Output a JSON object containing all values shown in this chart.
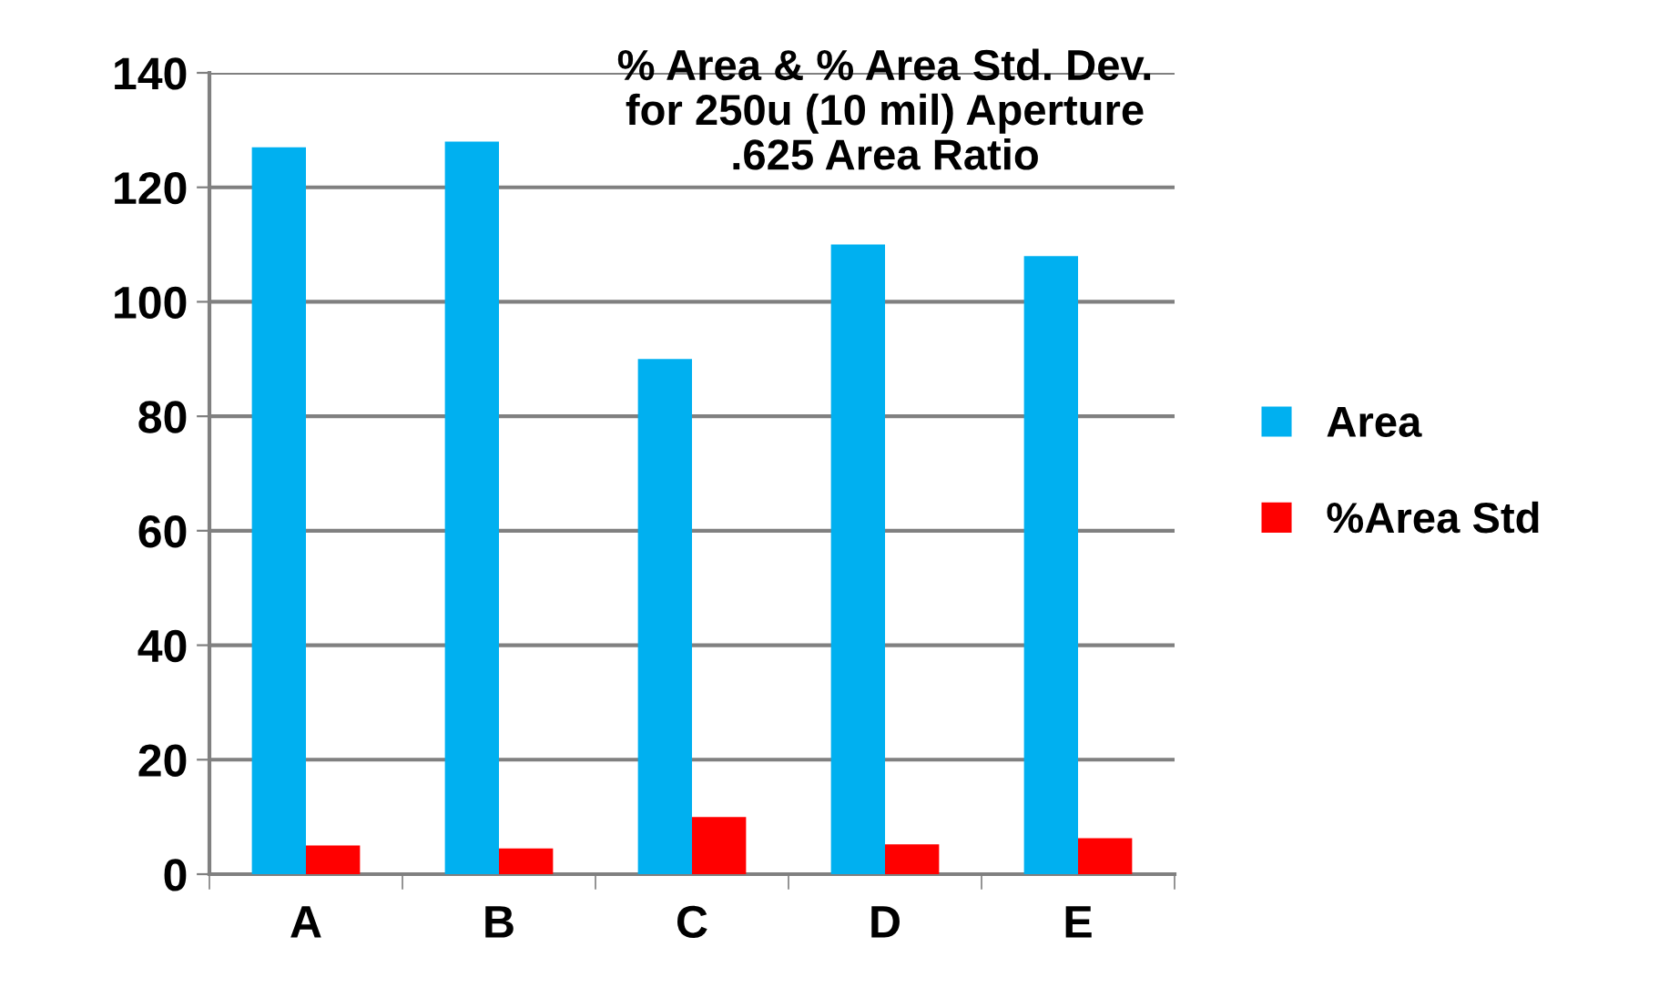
{
  "chart_data": {
    "type": "bar",
    "title": "% Area & % Area Std. Dev.\nfor 250u (10 mil) Aperture\n.625 Area Ratio",
    "categories": [
      "A",
      "B",
      "C",
      "D",
      "E"
    ],
    "series": [
      {
        "name": "Area",
        "color": "#00b0f0",
        "values": [
          127,
          128,
          90,
          110,
          108
        ]
      },
      {
        "name": "%Area Std",
        "color": "#ff0000",
        "values": [
          5,
          4.5,
          10,
          5.2,
          6.3
        ]
      }
    ],
    "ylim": [
      0,
      140
    ],
    "yticks": [
      0,
      20,
      40,
      60,
      80,
      100,
      120,
      140
    ],
    "grid": "y",
    "legend": "right"
  }
}
